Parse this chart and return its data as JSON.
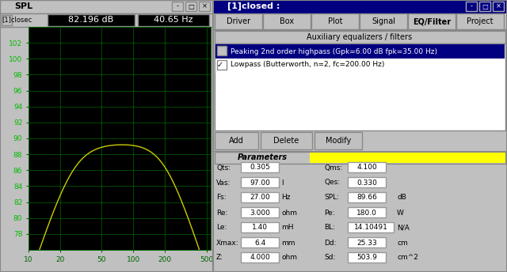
{
  "left_panel": {
    "title": "SPL",
    "toolbar_text": "[1]closec",
    "info1": "82.196 dB",
    "info2": "40.65 Hz",
    "bg_color": "#000000",
    "grid_color": "#006600",
    "curve_color": "#cccc00",
    "ylabel_color": "#00bb00",
    "xlabel_ticks": [
      10,
      20,
      50,
      100,
      200,
      500
    ],
    "yticks": [
      78,
      80,
      82,
      84,
      86,
      88,
      90,
      92,
      94,
      96,
      98,
      100,
      102
    ],
    "ylim": [
      76,
      104
    ],
    "xlim_log": [
      0.903,
      2.778
    ]
  },
  "right_panel": {
    "title": "[1]closed :",
    "tabs": [
      "Driver",
      "Box",
      "Plot",
      "Signal",
      "EQ/Filter",
      "Project"
    ],
    "active_tab": "EQ/Filter",
    "aux_label": "Auxiliary equalizers / filters",
    "filters": [
      {
        "checked": false,
        "text": "Peaking 2nd order highpass (Gpk=6.00 dB fpk=35.00 Hz)",
        "selected": true
      },
      {
        "checked": true,
        "text": "Lowpass (Butterworth, n=2, fc=200.00 Hz)",
        "selected": false
      }
    ],
    "buttons": [
      "Add",
      "Delete",
      "Modify"
    ],
    "params_label": "Parameters",
    "yellow_bar": "#ffff00",
    "params_left": [
      {
        "label": "Qts:",
        "value": "0.305",
        "unit": ""
      },
      {
        "label": "Vas:",
        "value": "97.00",
        "unit": "l"
      },
      {
        "label": "Fs:",
        "value": "27.00",
        "unit": "Hz"
      },
      {
        "label": "Re:",
        "value": "3.000",
        "unit": "ohm"
      },
      {
        "label": "Le:",
        "value": "1.40",
        "unit": "mH"
      },
      {
        "label": "Xmax:",
        "value": "6.4",
        "unit": "mm"
      },
      {
        "label": "Z:",
        "value": "4.000",
        "unit": "ohm"
      }
    ],
    "params_right": [
      {
        "label": "Qms:",
        "value": "4.100",
        "unit": ""
      },
      {
        "label": "Qes:",
        "value": "0.330",
        "unit": ""
      },
      {
        "label": "SPL:",
        "value": "89.66",
        "unit": "dB"
      },
      {
        "label": "Pe:",
        "value": "180.0",
        "unit": "W"
      },
      {
        "label": "BL:",
        "value": "14.10491",
        "unit": "N/A"
      },
      {
        "label": "Dd:",
        "value": "25.33",
        "unit": "cm"
      },
      {
        "label": "Sd:",
        "value": "503.9",
        "unit": "cm^2"
      }
    ]
  }
}
